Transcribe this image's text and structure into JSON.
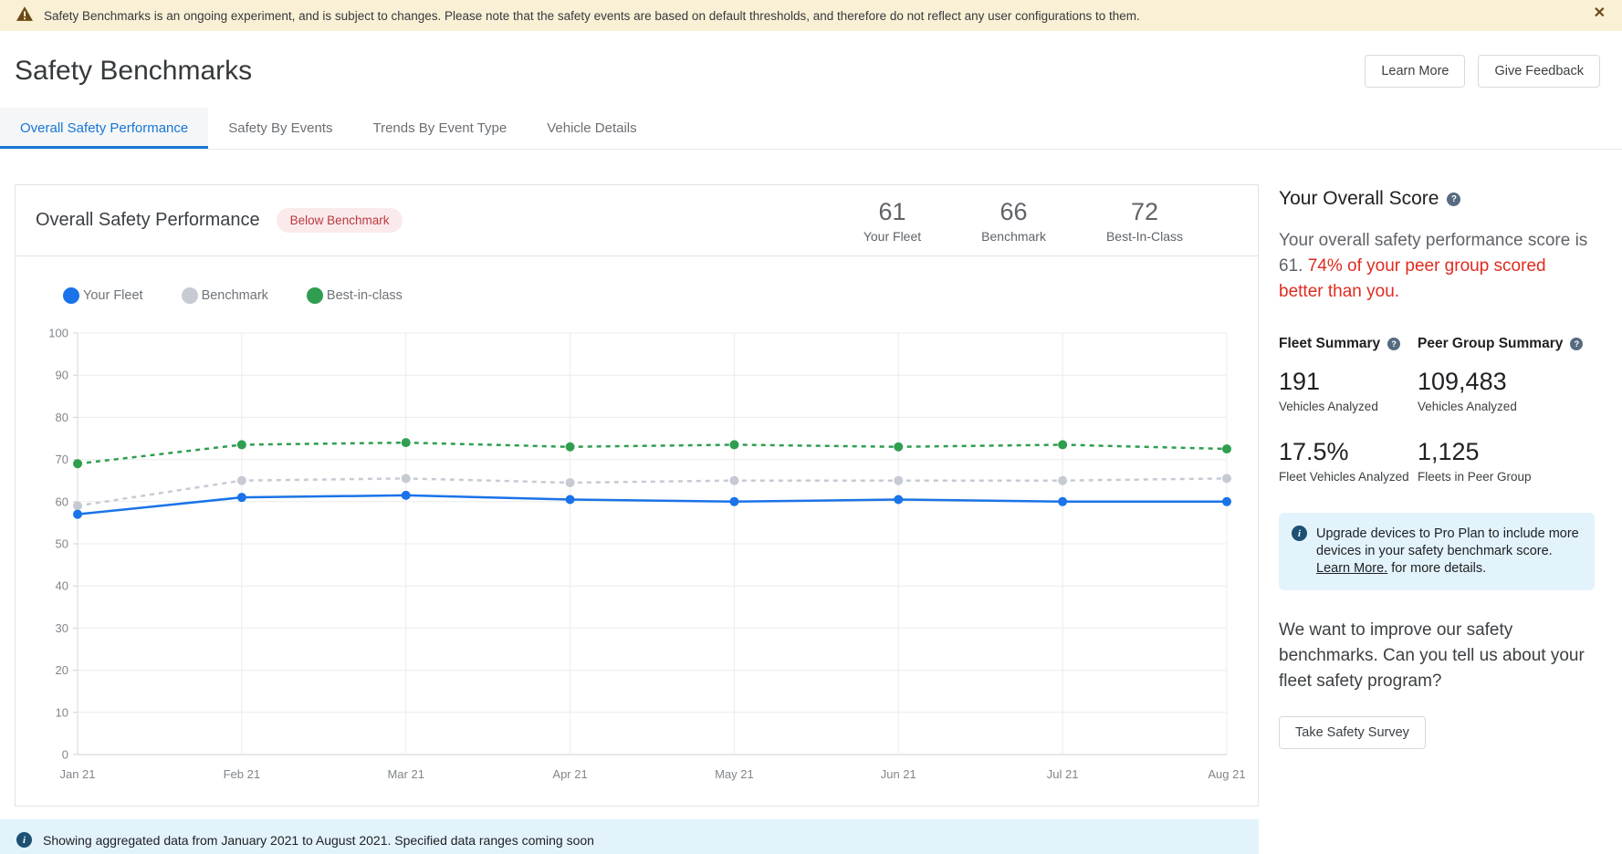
{
  "banner": {
    "text": "Safety Benchmarks is an ongoing experiment, and is subject to changes. Please note that the safety events are based on default thresholds, and therefore do not reflect any user configurations to them.",
    "close_glyph": "✕"
  },
  "header": {
    "title": "Safety Benchmarks",
    "learn_more_label": "Learn More",
    "give_feedback_label": "Give Feedback"
  },
  "tabs": [
    {
      "label": "Overall Safety Performance",
      "active": true
    },
    {
      "label": "Safety By Events",
      "active": false
    },
    {
      "label": "Trends By Event Type",
      "active": false
    },
    {
      "label": "Vehicle Details",
      "active": false
    }
  ],
  "card": {
    "title": "Overall Safety Performance",
    "badge": "Below Benchmark",
    "scores": [
      {
        "value": "61",
        "label": "Your Fleet"
      },
      {
        "value": "66",
        "label": "Benchmark"
      },
      {
        "value": "72",
        "label": "Best-In-Class"
      }
    ]
  },
  "chart_data": {
    "type": "line",
    "x": [
      "Jan 21",
      "Feb 21",
      "Mar 21",
      "Apr 21",
      "May 21",
      "Jun 21",
      "Jul 21",
      "Aug 21"
    ],
    "series": [
      {
        "name": "Your Fleet",
        "color": "#1a73e8",
        "style": "solid",
        "values": [
          57,
          61,
          61.5,
          60.5,
          60,
          60.5,
          60,
          60
        ]
      },
      {
        "name": "Benchmark",
        "color": "#c6cbd3",
        "style": "dashed",
        "values": [
          59,
          65,
          65.5,
          64.5,
          65,
          65,
          65,
          65.5
        ]
      },
      {
        "name": "Best-in-class",
        "color": "#2f9e4f",
        "style": "dashed",
        "values": [
          69,
          73.5,
          74,
          73,
          73.5,
          73,
          73.5,
          72.5
        ]
      }
    ],
    "ylim": [
      0,
      100
    ],
    "ytick_step": 10,
    "grid": true,
    "legend_position": "top-left"
  },
  "icons": {
    "help_glyph": "?",
    "info_glyph": "i"
  },
  "sidebar": {
    "title": "Your Overall Score",
    "score_text_normal": "Your overall safety performance score is 61. ",
    "score_text_red": "74% of your peer group scored better than you.",
    "fleet_summary": {
      "title": "Fleet Summary",
      "stats": [
        {
          "value": "191",
          "label": "Vehicles Analyzed"
        },
        {
          "value": "17.5%",
          "label": "Fleet Vehicles Analyzed"
        }
      ]
    },
    "peer_summary": {
      "title": "Peer Group Summary",
      "stats": [
        {
          "value": "109,483",
          "label": "Vehicles Analyzed"
        },
        {
          "value": "1,125",
          "label": "Fleets in Peer Group"
        }
      ]
    },
    "upgrade_note": {
      "pre": "Upgrade devices to Pro Plan to include more devices in your safety benchmark score. ",
      "link": "Learn More.",
      "post": " for more details."
    },
    "survey_prompt": "We want to improve our safety benchmarks. Can you tell us about your fleet safety program?",
    "survey_button": "Take Safety Survey"
  },
  "footer": {
    "text": "Showing aggregated data from January 2021 to August 2021. Specified data ranges coming soon"
  }
}
